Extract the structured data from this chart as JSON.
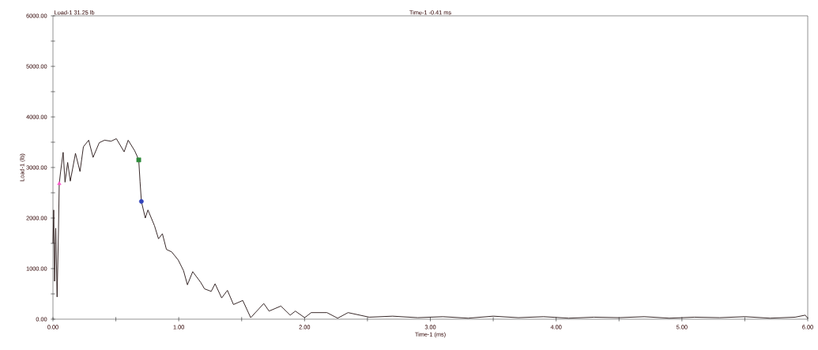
{
  "chart_data": {
    "type": "line",
    "xlabel": "Time-1 (ms)",
    "ylabel": "Load-1 (lb)",
    "annotations": [
      "Load-1  31.25 lb",
      "Time-1  -0.41 ms"
    ],
    "xlim": [
      0,
      6
    ],
    "ylim": [
      0,
      6000
    ],
    "xticks": [
      {
        "value": 0,
        "label": "0.00"
      },
      {
        "value": 0.5,
        "label": null
      },
      {
        "value": 1,
        "label": "1.00"
      },
      {
        "value": 1.5,
        "label": null
      },
      {
        "value": 2,
        "label": "2.00"
      },
      {
        "value": 2.5,
        "label": null
      },
      {
        "value": 3,
        "label": "3.00"
      },
      {
        "value": 3.5,
        "label": null
      },
      {
        "value": 4,
        "label": "4.00"
      },
      {
        "value": 4.5,
        "label": null
      },
      {
        "value": 5,
        "label": "5.00"
      },
      {
        "value": 5.5,
        "label": null
      },
      {
        "value": 6,
        "label": "6.00"
      }
    ],
    "yticks": [
      {
        "value": 0,
        "label": "0.00"
      },
      {
        "value": 500,
        "label": null
      },
      {
        "value": 1000,
        "label": "1000.00"
      },
      {
        "value": 1500,
        "label": null
      },
      {
        "value": 2000,
        "label": "2000.00"
      },
      {
        "value": 2500,
        "label": null
      },
      {
        "value": 3000,
        "label": "3000.00"
      },
      {
        "value": 3500,
        "label": null
      },
      {
        "value": 4000,
        "label": "4000.00"
      },
      {
        "value": 4500,
        "label": null
      },
      {
        "value": 5000,
        "label": "5000.00"
      },
      {
        "value": 5500,
        "label": null
      },
      {
        "value": 6000,
        "label": "6000.00"
      }
    ],
    "grid": false,
    "marker": "none",
    "line_style": "solid",
    "series": [
      {
        "color": "#2a1a1a",
        "x": [
          0,
          0.006,
          0.013,
          0.022,
          0.033,
          0.044,
          0.05,
          0.061,
          0.081,
          0.096,
          0.117,
          0.138,
          0.179,
          0.215,
          0.242,
          0.284,
          0.319,
          0.368,
          0.41,
          0.462,
          0.504,
          0.566,
          0.598,
          0.65,
          0.682,
          0.692,
          0.703,
          0.734,
          0.755,
          0.807,
          0.839,
          0.87,
          0.902,
          0.944,
          0.996,
          1.038,
          1.069,
          1.111,
          1.174,
          1.205,
          1.258,
          1.289,
          1.341,
          1.387,
          1.435,
          1.509,
          1.572,
          1.676,
          1.718,
          1.812,
          1.886,
          1.927,
          2.001,
          2.053,
          2.178,
          2.263,
          2.346,
          2.514,
          2.7,
          2.9,
          3.1,
          3.3,
          3.5,
          3.7,
          3.9,
          4.1,
          4.3,
          4.5,
          4.7,
          4.9,
          5.1,
          5.3,
          5.5,
          5.7,
          5.9,
          5.98,
          6.0
        ],
        "values": [
          1500,
          2160,
          750,
          1800,
          440,
          1750,
          2680,
          2920,
          3300,
          2710,
          3100,
          2730,
          3280,
          2920,
          3410,
          3540,
          3200,
          3490,
          3540,
          3520,
          3570,
          3310,
          3540,
          3330,
          3150,
          2730,
          2330,
          2000,
          2160,
          1850,
          1590,
          1690,
          1380,
          1330,
          1170,
          960,
          680,
          940,
          730,
          600,
          550,
          700,
          420,
          570,
          290,
          370,
          30,
          310,
          160,
          260,
          80,
          160,
          30,
          130,
          130,
          20,
          130,
          40,
          60,
          30,
          50,
          20,
          60,
          30,
          50,
          20,
          40,
          30,
          50,
          20,
          40,
          30,
          50,
          20,
          40,
          80,
          20
        ]
      },
      {
        "type": "scatter",
        "marker": "triangle",
        "color": "#ff55cc",
        "x": [
          0.05
        ],
        "values": [
          2680
        ]
      },
      {
        "type": "scatter",
        "marker": "square",
        "color": "#2e8b3a",
        "x": [
          0.682
        ],
        "values": [
          3150
        ]
      },
      {
        "type": "scatter",
        "marker": "circle",
        "color": "#3344bb",
        "x": [
          0.703
        ],
        "values": [
          2330
        ]
      }
    ]
  }
}
